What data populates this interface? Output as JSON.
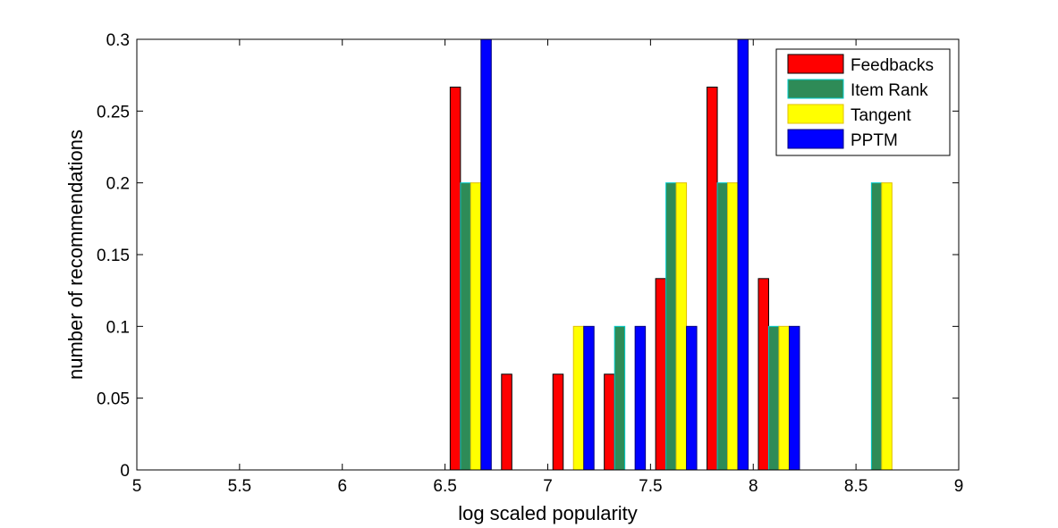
{
  "chart_data": {
    "type": "bar",
    "title": "",
    "xlabel": "log scaled popularity",
    "ylabel": "number of recommendations",
    "xlim": [
      5,
      9
    ],
    "ylim": [
      0,
      0.3
    ],
    "xticks": [
      "5",
      "5.5",
      "6",
      "6.5",
      "7",
      "7.5",
      "8",
      "8.5",
      "9"
    ],
    "yticks": [
      "0",
      "0.05",
      "0.1",
      "0.15",
      "0.2",
      "0.25",
      "0.3"
    ],
    "grid": false,
    "legend_position": "top-right",
    "bin_centers": [
      5.125,
      5.375,
      5.625,
      5.875,
      6.125,
      6.375,
      6.625,
      6.875,
      7.125,
      7.375,
      7.625,
      7.875,
      8.125,
      8.375,
      8.625,
      8.875
    ],
    "series": [
      {
        "name": "Feedbacks",
        "color": "#ff0000",
        "edge": "#000000",
        "values": [
          0,
          0,
          0,
          0,
          0,
          0,
          0.2667,
          0.0667,
          0.0667,
          0.0667,
          0.1333,
          0.2667,
          0.1333,
          0,
          0,
          0
        ]
      },
      {
        "name": "Item Rank",
        "color": "#2e8b57",
        "edge": "#00cccc",
        "values": [
          0,
          0,
          0,
          0,
          0,
          0,
          0.2,
          0,
          0,
          0.1,
          0.2,
          0.2,
          0.1,
          0,
          0.2,
          0
        ]
      },
      {
        "name": "Tangent",
        "color": "#ffff00",
        "edge": "#e0c000",
        "values": [
          0,
          0,
          0,
          0,
          0,
          0,
          0.2,
          0,
          0.1,
          0,
          0.2,
          0.2,
          0.1,
          0,
          0.2,
          0
        ]
      },
      {
        "name": "PPTM",
        "color": "#0000ff",
        "edge": "#000080",
        "values": [
          0,
          0,
          0,
          0,
          0,
          0,
          0.3,
          0,
          0.1,
          0.1,
          0.1,
          0.3,
          0.1,
          0,
          0,
          0
        ]
      }
    ]
  }
}
